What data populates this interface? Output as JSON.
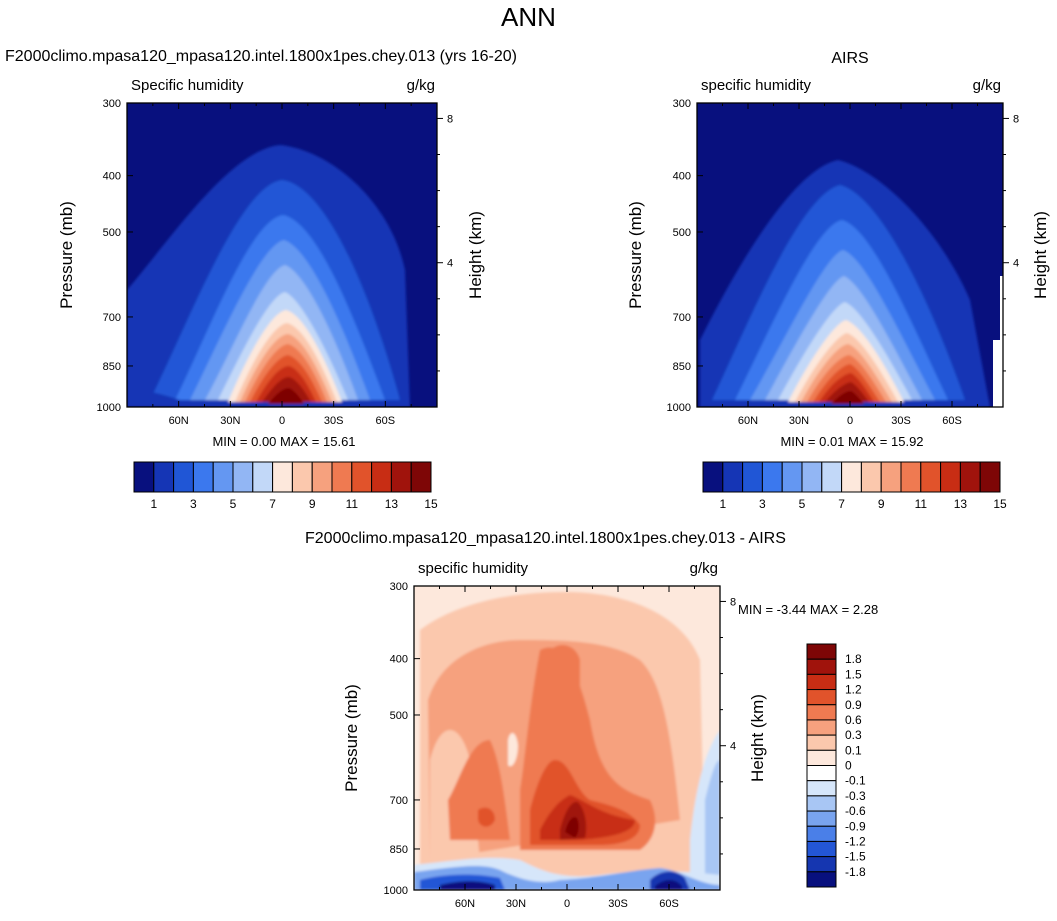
{
  "figure": {
    "title": "ANN"
  },
  "chart_data": [
    {
      "type": "heatmap",
      "title": "F2000climo.mpasa120_mpasa120.intel.1800x1pes.chey.013 (yrs 16-20)",
      "left_label": "Specific humidity",
      "right_label": "g/kg",
      "xlabel": "",
      "ylabel": "Pressure (mb)",
      "y2label": "Height (km)",
      "x_ticks": [
        "60N",
        "30N",
        "0",
        "30S",
        "60S"
      ],
      "x_tick_values": [
        60,
        30,
        0,
        -30,
        -60
      ],
      "xlim": [
        90,
        -90
      ],
      "y_ticks": [
        "300",
        "400",
        "500",
        "700",
        "850",
        "1000"
      ],
      "y_tick_values": [
        300,
        400,
        500,
        700,
        850,
        1000
      ],
      "ylim": [
        1000,
        300
      ],
      "y_scale": "log",
      "y2_ticks": [
        "8",
        "4"
      ],
      "y2_tick_values": [
        8,
        4
      ],
      "stats": {
        "min_label": "MIN =",
        "min": "0.00",
        "max_label": "MAX =",
        "max": "15.61"
      },
      "colorbar": {
        "orientation": "horizontal",
        "labels": [
          "1",
          "3",
          "5",
          "7",
          "9",
          "11",
          "13",
          "15"
        ],
        "colors": [
          "#08107e",
          "#1535b5",
          "#2056d6",
          "#3b78ee",
          "#6497f2",
          "#92b6f4",
          "#c2d8f8",
          "#fde8dc",
          "#fbc8ad",
          "#f6a17e",
          "#ef7a51",
          "#e1532b",
          "#c82d14",
          "#a0130c",
          "#7e0606"
        ]
      }
    },
    {
      "type": "heatmap",
      "title": "AIRS",
      "left_label": "specific humidity",
      "right_label": "g/kg",
      "xlabel": "",
      "ylabel": "Pressure (mb)",
      "y2label": "Height (km)",
      "x_ticks": [
        "60N",
        "30N",
        "0",
        "30S",
        "60S"
      ],
      "x_tick_values": [
        60,
        30,
        0,
        -30,
        -60
      ],
      "xlim": [
        90,
        -90
      ],
      "y_ticks": [
        "300",
        "400",
        "500",
        "700",
        "850",
        "1000"
      ],
      "y_tick_values": [
        300,
        400,
        500,
        700,
        850,
        1000
      ],
      "ylim": [
        1000,
        300
      ],
      "y_scale": "log",
      "y2_ticks": [
        "8",
        "4"
      ],
      "y2_tick_values": [
        8,
        4
      ],
      "stats": {
        "min_label": "MIN =",
        "min": "0.01",
        "max_label": "MAX =",
        "max": "15.92"
      },
      "colorbar": {
        "orientation": "horizontal",
        "labels": [
          "1",
          "3",
          "5",
          "7",
          "9",
          "11",
          "13",
          "15"
        ],
        "colors": [
          "#08107e",
          "#1535b5",
          "#2056d6",
          "#3b78ee",
          "#6497f2",
          "#92b6f4",
          "#c2d8f8",
          "#fde8dc",
          "#fbc8ad",
          "#f6a17e",
          "#ef7a51",
          "#e1532b",
          "#c82d14",
          "#a0130c",
          "#7e0606"
        ]
      }
    },
    {
      "type": "heatmap",
      "title": "F2000climo.mpasa120_mpasa120.intel.1800x1pes.chey.013 - AIRS",
      "left_label": "specific humidity",
      "right_label": "g/kg",
      "xlabel": "",
      "ylabel": "Pressure (mb)",
      "y2label": "Height (km)",
      "x_ticks": [
        "60N",
        "30N",
        "0",
        "30S",
        "60S"
      ],
      "x_tick_values": [
        60,
        30,
        0,
        -30,
        -60
      ],
      "xlim": [
        90,
        -90
      ],
      "y_ticks": [
        "300",
        "400",
        "500",
        "700",
        "850",
        "1000"
      ],
      "y_tick_values": [
        300,
        400,
        500,
        700,
        850,
        1000
      ],
      "ylim": [
        1000,
        300
      ],
      "y_scale": "log",
      "y2_ticks": [
        "8",
        "4"
      ],
      "y2_tick_values": [
        8,
        4
      ],
      "stats": {
        "min_label": "MIN =",
        "min": "-3.44",
        "max_label": "MAX =",
        "max": "2.28"
      },
      "colorbar": {
        "orientation": "vertical",
        "labels": [
          "1.8",
          "1.5",
          "1.2",
          "0.9",
          "0.6",
          "0.3",
          "0.1",
          "0",
          "-0.1",
          "-0.3",
          "-0.6",
          "-0.9",
          "-1.2",
          "-1.5",
          "-1.8"
        ],
        "colors": [
          "#7e0606",
          "#a0130c",
          "#c82d14",
          "#e1532b",
          "#ef7a51",
          "#f6a17e",
          "#fbc8ad",
          "#fde8dc",
          "#ffffff",
          "#d6e6fa",
          "#a8c6f4",
          "#79a4ef",
          "#4a7fe8",
          "#2356d6",
          "#1536b0",
          "#08107e"
        ]
      }
    }
  ]
}
